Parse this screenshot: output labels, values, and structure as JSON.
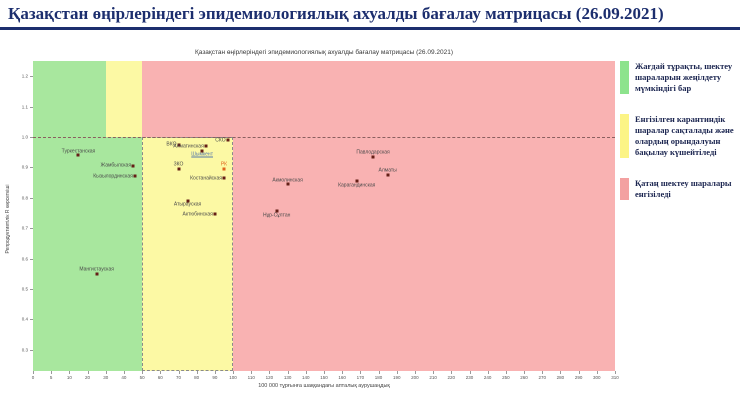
{
  "page": {
    "main_title": "Қазақстан өңірлеріндегі эпидемиологиялық ахуалды бағалау матрицасы  (26.09.2021)"
  },
  "chart_data": {
    "type": "scatter",
    "title": "Қазақстан өңірлеріндегі эпидемиологиялық ахуалды бағалау матрицасы (26.09.2021)",
    "xlabel": "100 000 тұрғынға шаққандағы апталық аурушаңдық",
    "ylabel": "Репродуктивтілік R көрсеткіші",
    "xticks": [
      0,
      5,
      10,
      20,
      30,
      40,
      50,
      60,
      70,
      80,
      90,
      100,
      110,
      120,
      130,
      140,
      150,
      160,
      170,
      180,
      190,
      200,
      210,
      220,
      230,
      240,
      250,
      260,
      270,
      280,
      290,
      300,
      310
    ],
    "yticks": [
      1.2,
      1.1,
      1.0,
      0.9,
      0.8,
      0.7,
      0.6,
      0.5,
      0.4,
      0.3
    ],
    "ylim": [
      0.23,
      1.25
    ],
    "xlim": [
      0,
      310
    ],
    "grid": false,
    "legend_position": "right",
    "threshold_line_r": 1.0,
    "zones": [
      {
        "color": "green",
        "x": [
          0,
          30
        ],
        "r": [
          1.0,
          1.25
        ],
        "dashed": false
      },
      {
        "color": "yellow",
        "x": [
          30,
          50
        ],
        "r": [
          1.0,
          1.25
        ],
        "dashed": false
      },
      {
        "color": "red",
        "x": [
          50,
          310
        ],
        "r": [
          1.0,
          1.25
        ],
        "dashed": false
      },
      {
        "color": "green",
        "x": [
          0,
          50
        ],
        "r": [
          0.23,
          1.0
        ],
        "dashed": false
      },
      {
        "color": "yellow",
        "x": [
          50,
          100
        ],
        "r": [
          0.23,
          1.0
        ],
        "dashed": true
      },
      {
        "color": "red",
        "x": [
          100,
          310
        ],
        "r": [
          0.23,
          1.0
        ],
        "dashed": false
      }
    ],
    "points": [
      {
        "name": "Туркестанская",
        "x": 15,
        "r": 0.94,
        "label_pos": "above"
      },
      {
        "name": "Жамбылская",
        "x": 45,
        "r": 0.905,
        "label_pos": "left"
      },
      {
        "name": "Кызылординская",
        "x": 46,
        "r": 0.87,
        "label_pos": "left"
      },
      {
        "name": "Мангистауская",
        "x": 25,
        "r": 0.55,
        "label_pos": "above"
      },
      {
        "name": "ВКО",
        "x": 70,
        "r": 0.975,
        "label_pos": "left"
      },
      {
        "name": "Алматинская",
        "x": 85,
        "r": 0.97,
        "label_pos": "left"
      },
      {
        "name": "СКО",
        "x": 97,
        "r": 0.99,
        "label_pos": "left"
      },
      {
        "name": "Шымкент",
        "x": 83,
        "r": 0.955,
        "label_pos": "below",
        "label_color": "#5577aa",
        "underline": true
      },
      {
        "name": "ЗКО",
        "x": 70,
        "r": 0.895,
        "label_pos": "above"
      },
      {
        "name": "РК",
        "x": 95,
        "r": 0.895,
        "label_pos": "above",
        "point_color": "#e0641e",
        "label_color": "#e0641e"
      },
      {
        "name": "Костанайская",
        "x": 95,
        "r": 0.865,
        "label_pos": "left"
      },
      {
        "name": "Атырауская",
        "x": 75,
        "r": 0.79,
        "label_pos": "below"
      },
      {
        "name": "Актюбинская",
        "x": 90,
        "r": 0.745,
        "label_pos": "left"
      },
      {
        "name": "Павлодарская",
        "x": 177,
        "r": 0.935,
        "label_pos": "above"
      },
      {
        "name": "Алматы",
        "x": 185,
        "r": 0.875,
        "label_pos": "above"
      },
      {
        "name": "Акмолинская",
        "x": 130,
        "r": 0.845,
        "label_pos": "above"
      },
      {
        "name": "Карагандинская",
        "x": 168,
        "r": 0.855,
        "label_pos": "below"
      },
      {
        "name": "Нұр-Сұлтан",
        "x": 124,
        "r": 0.755,
        "label_pos": "below"
      }
    ],
    "colors": {
      "green": "#a8e79e",
      "yellow": "#fcf9a4",
      "red": "#f9b2b2",
      "point": "#641e16"
    }
  },
  "legend": {
    "items": [
      {
        "label": "Жағдай тұрақты, шектеу шараларын жеңілдету мүмкіндігі бар",
        "color": "#8de38d"
      },
      {
        "label": "Енгізілген карантиндік шаралар сақталады және олардың орындалуын бақылау күшейтіледі",
        "color": "#fcf486"
      },
      {
        "label": "Қатаң шектеу шаралары енгізіледі",
        "color": "#f3a1a1"
      }
    ]
  }
}
